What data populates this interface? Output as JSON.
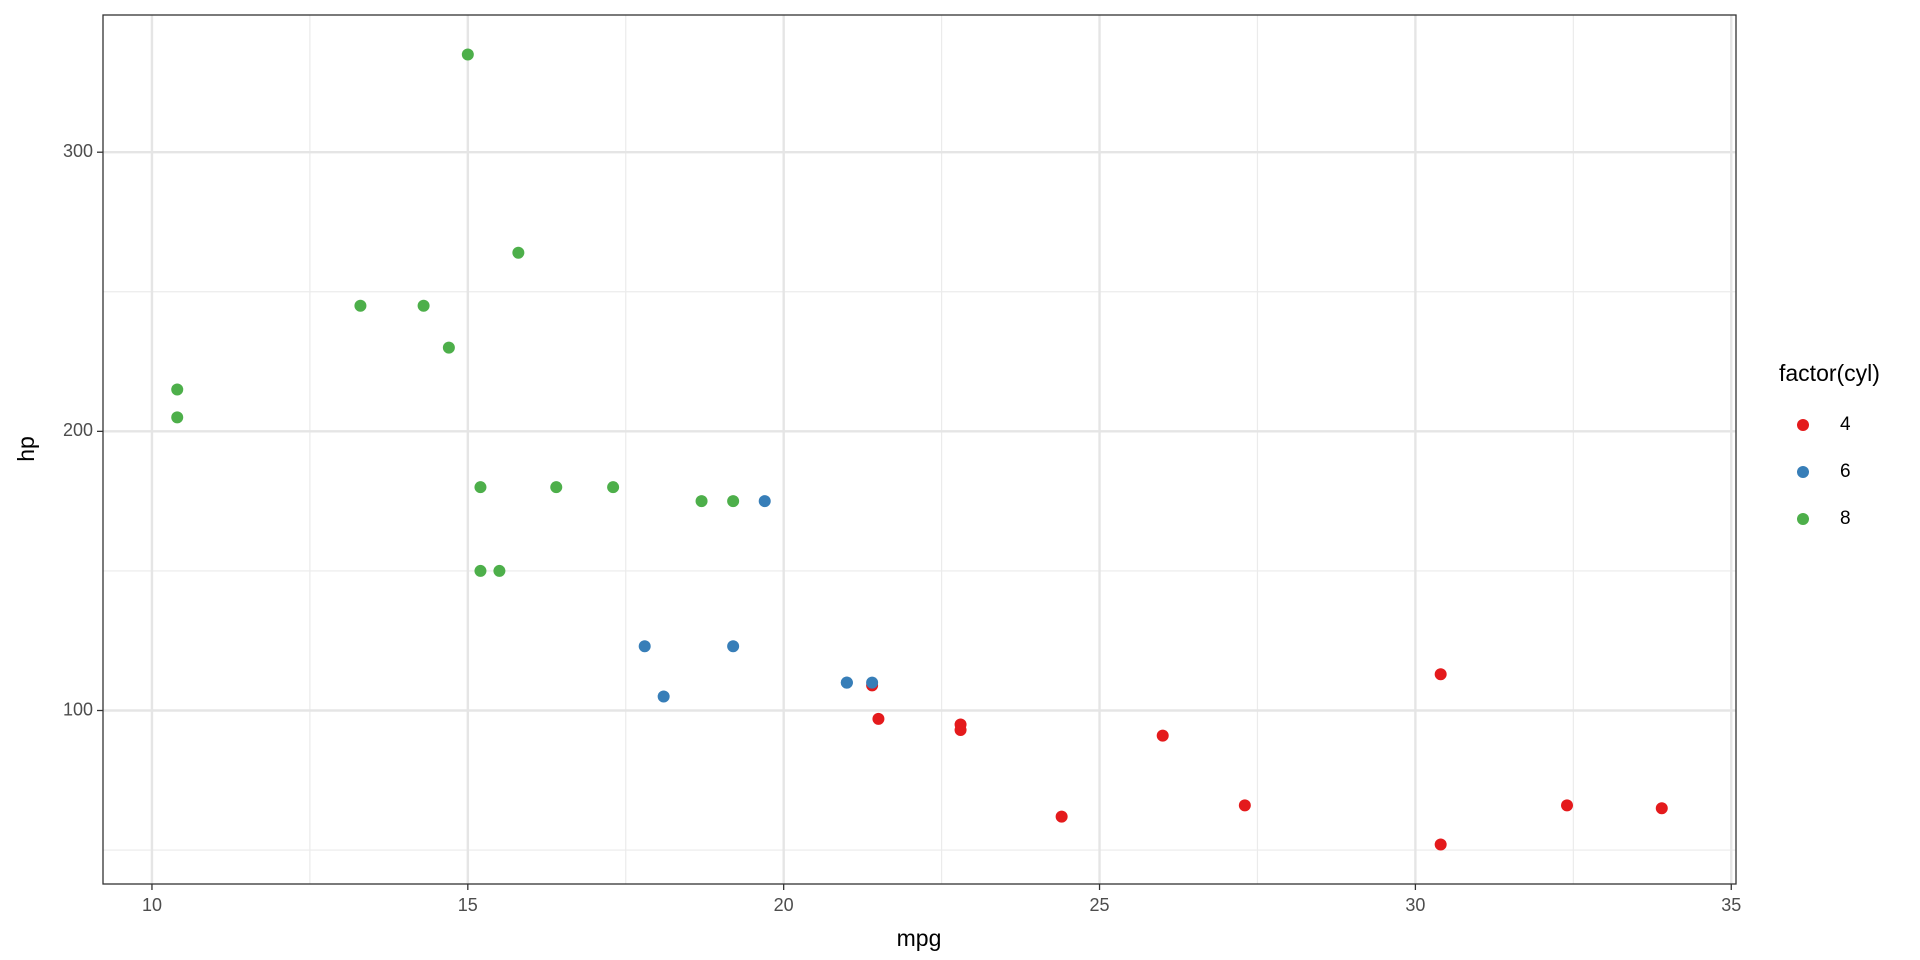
{
  "chart_data": {
    "type": "scatter",
    "x_label": "mpg",
    "y_label": "hp",
    "legend_title": "factor(cyl)",
    "legend_position": "right",
    "grid": true,
    "xlim": [
      9.225,
      35.075
    ],
    "xticks": [
      10,
      15,
      20,
      25,
      30,
      35
    ],
    "ylim": [
      37.85,
      349.15
    ],
    "yticks": [
      100,
      200,
      300
    ],
    "series": [
      {
        "name": "4",
        "color": "#e41a1c",
        "x": [
          22.8,
          24.4,
          22.8,
          32.4,
          30.4,
          33.9,
          21.5,
          27.3,
          26.0,
          30.4,
          21.4
        ],
        "values": [
          93,
          62,
          95,
          66,
          52,
          65,
          97,
          66,
          91,
          113,
          109
        ]
      },
      {
        "name": "6",
        "color": "#377eb8",
        "x": [
          21.0,
          21.0,
          21.4,
          18.1,
          19.2,
          17.8,
          19.7
        ],
        "values": [
          110,
          110,
          110,
          105,
          123,
          123,
          175
        ]
      },
      {
        "name": "8",
        "color": "#4daf4a",
        "x": [
          18.7,
          14.3,
          16.4,
          17.3,
          15.2,
          10.4,
          10.4,
          14.7,
          15.5,
          15.2,
          13.3,
          19.2,
          15.8,
          15.0
        ],
        "values": [
          175,
          245,
          180,
          180,
          180,
          205,
          215,
          230,
          150,
          150,
          245,
          175,
          264,
          335
        ]
      }
    ]
  }
}
